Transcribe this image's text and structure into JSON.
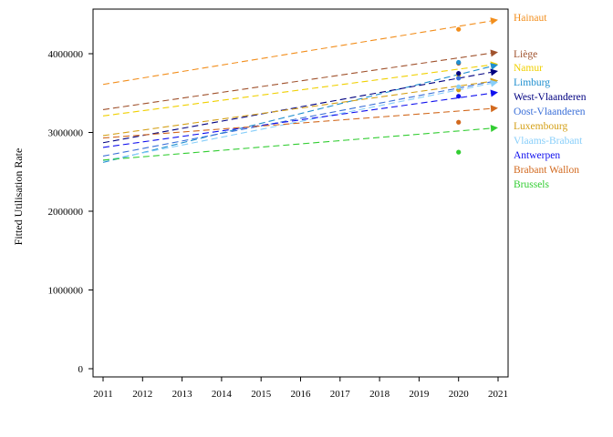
{
  "chart_data": {
    "type": "line",
    "ylabel": "Fitted Utilisation Rate",
    "xlabel": "",
    "xlim": [
      2011,
      2021
    ],
    "ylim": [
      0,
      4600000
    ],
    "x_ticks": [
      2011,
      2012,
      2013,
      2014,
      2015,
      2016,
      2017,
      2018,
      2019,
      2020,
      2021
    ],
    "x_tick_labels": [
      "2011",
      "2012",
      "2013",
      "2014",
      "2015",
      "2016",
      "2017",
      "2018",
      "2019",
      "2020",
      "2021"
    ],
    "y_ticks": [
      0,
      1000000,
      2000000,
      3000000,
      4000000
    ],
    "y_tick_labels": [
      "0",
      "1000000",
      "2000000",
      "3000000",
      "4000000"
    ],
    "legend_placement": "right",
    "grid": false,
    "series": [
      {
        "name": "Hainaut",
        "color": "#f28e1c",
        "x": [
          2011,
          2021
        ],
        "values": [
          3610000,
          4430000
        ],
        "observed_2020": 4310000
      },
      {
        "name": "Liège",
        "color": "#a0522d",
        "x": [
          2011,
          2021
        ],
        "values": [
          3290000,
          4020000
        ],
        "observed_2020": 3880000
      },
      {
        "name": "Namur",
        "color": "#f0d000",
        "x": [
          2011,
          2021
        ],
        "values": [
          3210000,
          3870000
        ],
        "observed_2020": 3730000
      },
      {
        "name": "Limburg",
        "color": "#1f8fcf",
        "x": [
          2011,
          2021
        ],
        "values": [
          2620000,
          3860000
        ],
        "observed_2020": 3890000
      },
      {
        "name": "West-Vlaanderen",
        "color": "#000080",
        "x": [
          2011,
          2021
        ],
        "values": [
          2870000,
          3780000
        ],
        "observed_2020": 3750000
      },
      {
        "name": "Oost-Vlaanderen",
        "color": "#3a6fd8",
        "x": [
          2011,
          2021
        ],
        "values": [
          2700000,
          3660000
        ],
        "observed_2020": 3690000
      },
      {
        "name": "Luxembourg",
        "color": "#d4a017",
        "x": [
          2011,
          2021
        ],
        "values": [
          2960000,
          3660000
        ],
        "observed_2020": 3540000
      },
      {
        "name": "Vlaams-Brabant",
        "color": "#87cefa",
        "x": [
          2011,
          2021
        ],
        "values": [
          2640000,
          3640000
        ],
        "observed_2020": 3580000
      },
      {
        "name": "Antwerpen",
        "color": "#1010ee",
        "x": [
          2011,
          2021
        ],
        "values": [
          2810000,
          3510000
        ],
        "observed_2020": 3460000
      },
      {
        "name": "Brabant Wallon",
        "color": "#d2691e",
        "x": [
          2011,
          2021
        ],
        "values": [
          2930000,
          3310000
        ],
        "observed_2020": 3130000
      },
      {
        "name": "Brussels",
        "color": "#32cd32",
        "x": [
          2011,
          2021
        ],
        "values": [
          2650000,
          3060000
        ],
        "observed_2020": 2750000
      }
    ]
  }
}
